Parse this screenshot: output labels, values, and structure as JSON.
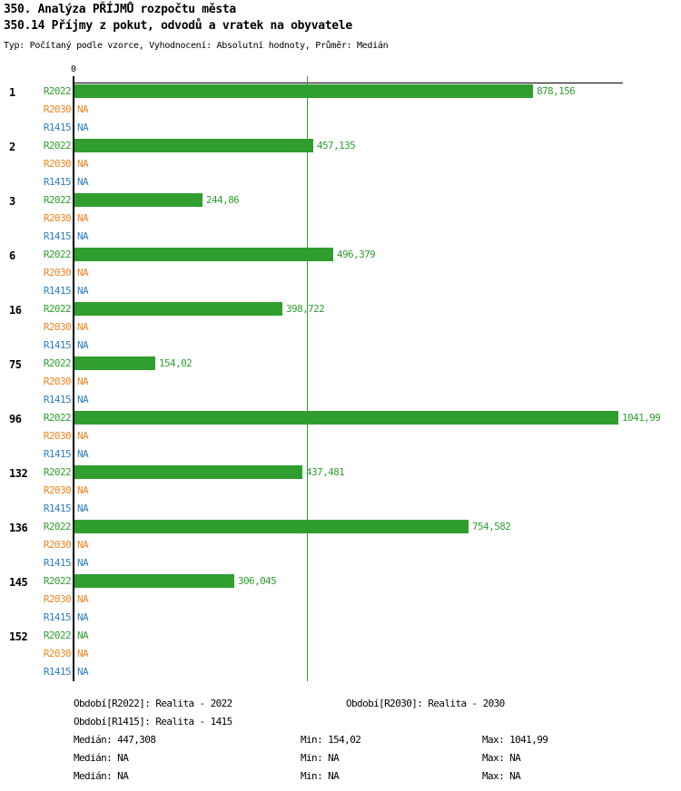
{
  "header": {
    "title_line1": "350. Analýza PŘÍJMŮ rozpočtu města",
    "title_line2": "350.14 Příjmy z pokut, odvodů a vratek na obyvatele",
    "subtitle": "Typ: Počítaný podle vzorce, Vyhodnocení: Absolutní hodnoty, Průměr: Medián"
  },
  "chart_data": {
    "type": "bar",
    "orientation": "horizontal",
    "x_axis": {
      "zero_label": "0",
      "max_value": 1041.99,
      "median_line_value": 447.308,
      "grid": false
    },
    "series_order": [
      "R2022",
      "R2030",
      "R1415"
    ],
    "colors": {
      "R2022": "#2f9e2f",
      "R2030": "#f0831e",
      "R1415": "#2b7fc2",
      "axis": "#000000"
    },
    "na_text": "NA",
    "groups": [
      {
        "category": "1",
        "rows": [
          {
            "series": "R2022",
            "value": 878.156,
            "label": "878,156"
          },
          {
            "series": "R2030",
            "value": null,
            "label": "NA"
          },
          {
            "series": "R1415",
            "value": null,
            "label": "NA"
          }
        ]
      },
      {
        "category": "2",
        "rows": [
          {
            "series": "R2022",
            "value": 457.135,
            "label": "457,135"
          },
          {
            "series": "R2030",
            "value": null,
            "label": "NA"
          },
          {
            "series": "R1415",
            "value": null,
            "label": "NA"
          }
        ]
      },
      {
        "category": "3",
        "rows": [
          {
            "series": "R2022",
            "value": 244.86,
            "label": "244,86"
          },
          {
            "series": "R2030",
            "value": null,
            "label": "NA"
          },
          {
            "series": "R1415",
            "value": null,
            "label": "NA"
          }
        ]
      },
      {
        "category": "6",
        "rows": [
          {
            "series": "R2022",
            "value": 496.379,
            "label": "496,379"
          },
          {
            "series": "R2030",
            "value": null,
            "label": "NA"
          },
          {
            "series": "R1415",
            "value": null,
            "label": "NA"
          }
        ]
      },
      {
        "category": "16",
        "rows": [
          {
            "series": "R2022",
            "value": 398.722,
            "label": "398,722"
          },
          {
            "series": "R2030",
            "value": null,
            "label": "NA"
          },
          {
            "series": "R1415",
            "value": null,
            "label": "NA"
          }
        ]
      },
      {
        "category": "75",
        "rows": [
          {
            "series": "R2022",
            "value": 154.02,
            "label": "154,02"
          },
          {
            "series": "R2030",
            "value": null,
            "label": "NA"
          },
          {
            "series": "R1415",
            "value": null,
            "label": "NA"
          }
        ]
      },
      {
        "category": "96",
        "rows": [
          {
            "series": "R2022",
            "value": 1041.99,
            "label": "1041,99"
          },
          {
            "series": "R2030",
            "value": null,
            "label": "NA"
          },
          {
            "series": "R1415",
            "value": null,
            "label": "NA"
          }
        ]
      },
      {
        "category": "132",
        "rows": [
          {
            "series": "R2022",
            "value": 437.481,
            "label": "437,481"
          },
          {
            "series": "R2030",
            "value": null,
            "label": "NA"
          },
          {
            "series": "R1415",
            "value": null,
            "label": "NA"
          }
        ]
      },
      {
        "category": "136",
        "rows": [
          {
            "series": "R2022",
            "value": 754.582,
            "label": "754,582"
          },
          {
            "series": "R2030",
            "value": null,
            "label": "NA"
          },
          {
            "series": "R1415",
            "value": null,
            "label": "NA"
          }
        ]
      },
      {
        "category": "145",
        "rows": [
          {
            "series": "R2022",
            "value": 306.045,
            "label": "306,045"
          },
          {
            "series": "R2030",
            "value": null,
            "label": "NA"
          },
          {
            "series": "R1415",
            "value": null,
            "label": "NA"
          }
        ]
      },
      {
        "category": "152",
        "rows": [
          {
            "series": "R2022",
            "value": null,
            "label": "NA"
          },
          {
            "series": "R2030",
            "value": null,
            "label": "NA"
          },
          {
            "series": "R1415",
            "value": null,
            "label": "NA"
          }
        ]
      }
    ]
  },
  "legend": {
    "r2022": "Období[R2022]: Realita - 2022",
    "r2030": "Období[R2030]: Realita - 2030",
    "r1415": "Období[R1415]: Realita - 1415"
  },
  "stats": {
    "r2022": {
      "median": "Medián: 447,308",
      "min": "Min: 154,02",
      "max": "Max: 1041,99"
    },
    "r2030": {
      "median": "Medián: NA",
      "min": "Min: NA",
      "max": "Max: NA"
    },
    "r1415": {
      "median": "Medián: NA",
      "min": "Min: NA",
      "max": "Max: NA"
    }
  }
}
